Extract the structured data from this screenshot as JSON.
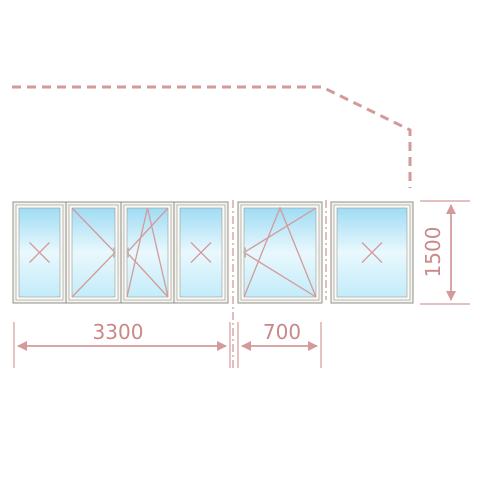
{
  "colors": {
    "accent": "#d49a9a",
    "frame_fill": "#f5f3ee",
    "frame_stroke": "#8f8f8a",
    "glass_top": "#9fdcf4",
    "glass_mid": "#e9f8fd",
    "glass_bottom": "#c3ecfa"
  },
  "dimensions": {
    "width_left": "3300",
    "width_right": "700",
    "height": "1500"
  },
  "panes": [
    {
      "id": "pane-1",
      "type": "fixed"
    },
    {
      "id": "pane-2",
      "type": "turn"
    },
    {
      "id": "pane-3",
      "type": "tilt-turn"
    },
    {
      "id": "pane-4",
      "type": "fixed"
    },
    {
      "id": "pane-5",
      "type": "tilt-turn"
    },
    {
      "id": "pane-6",
      "type": "fixed"
    }
  ]
}
